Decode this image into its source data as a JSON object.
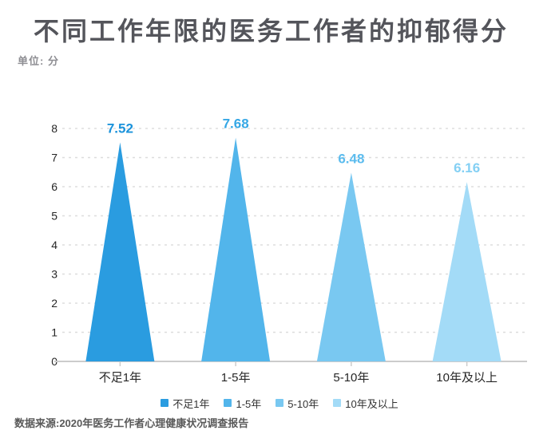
{
  "header": {
    "title": "不同工作年限的医务工作者的抑郁得分",
    "unit_label": "单位: 分"
  },
  "footer": {
    "source_text": "数据来源:2020年医务工作者心理健康状况调查报告"
  },
  "colors": {
    "title_text": "#54555B",
    "unit_text": "#8E8E93",
    "tick_text": "#262626",
    "category_text": "#262626",
    "legend_text": "#333333",
    "source_text": "#595959",
    "axis_line": "#CCCCCC",
    "tick_mark": "#CCCCCC",
    "gridline": "#DDDDDD",
    "series": [
      "#2A9CE0",
      "#52B5EB",
      "#79C8F1",
      "#A3DBF7"
    ],
    "value_label_colors": [
      "#1C93DB",
      "#35A7E5",
      "#5CBCEE",
      "#84D0F4"
    ]
  },
  "chart_data": {
    "type": "bar",
    "shape": "triangle",
    "title": "不同工作年限的医务工作者的抑郁得分",
    "unit": "分",
    "categories": [
      "不足1年",
      "1-5年",
      "5-10年",
      "10年及以上"
    ],
    "values": [
      7.52,
      7.68,
      6.48,
      6.16
    ],
    "value_labels": [
      "7.52",
      "7.68",
      "6.48",
      "6.16"
    ],
    "xlabel": "",
    "ylabel": "",
    "ylim": [
      0,
      8
    ],
    "yticks": [
      0,
      1,
      2,
      3,
      4,
      5,
      6,
      7,
      8
    ],
    "grid": "horizontal-dashed",
    "legend_position": "bottom",
    "legend": [
      "不足1年",
      "1-5年",
      "5-10年",
      "10年及以上"
    ],
    "source": "数据来源:2020年医务工作者心理健康状况调查报告"
  }
}
